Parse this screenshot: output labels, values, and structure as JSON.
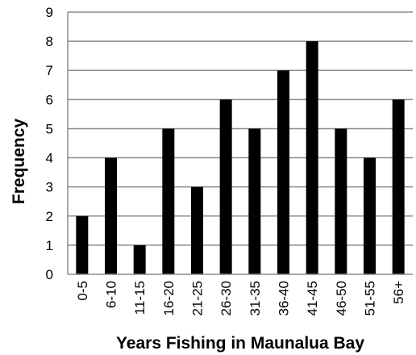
{
  "chart_data": {
    "type": "bar",
    "categories": [
      "0-5",
      "6-10",
      "11-15",
      "16-20",
      "21-25",
      "26-30",
      "31-35",
      "36-40",
      "41-45",
      "46-50",
      "51-55",
      "56+"
    ],
    "values": [
      2,
      4,
      1,
      5,
      3,
      6,
      5,
      7,
      8,
      5,
      4,
      6
    ],
    "xlabel": "Years Fishing in Maunalua Bay",
    "ylabel": "Frequency",
    "ylim": [
      0,
      9
    ],
    "yticks": [
      "0",
      "1",
      "2",
      "3",
      "4",
      "5",
      "6",
      "7",
      "8",
      "9"
    ],
    "grid": true,
    "legend": "none",
    "colors": {
      "bar": "#000000",
      "grid": "#8c8c8c",
      "axis": "#8c8c8c"
    }
  }
}
